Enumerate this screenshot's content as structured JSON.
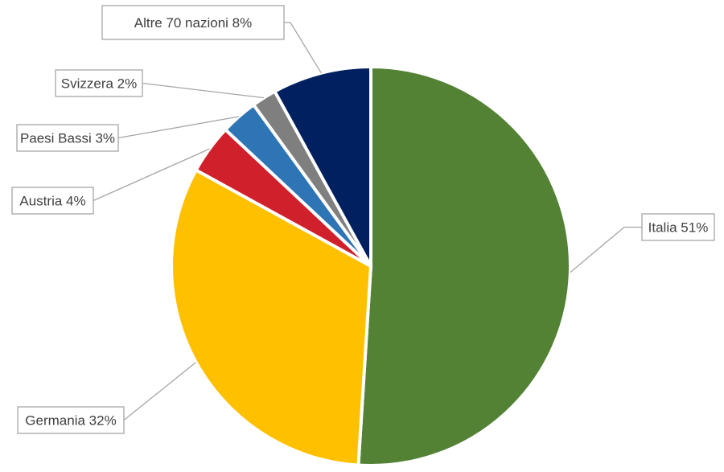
{
  "chart_data": {
    "type": "pie",
    "start_angle_deg": 0,
    "direction": "clockwise",
    "slices": [
      {
        "label": "Italia",
        "value": 51,
        "display": "Italia 51%",
        "color": "#548235"
      },
      {
        "label": "Germania",
        "value": 32,
        "display": "Germania 32%",
        "color": "#FFC000"
      },
      {
        "label": "Austria",
        "value": 4,
        "display": "Austria 4%",
        "color": "#D0202B"
      },
      {
        "label": "Paesi Bassi",
        "value": 3,
        "display": "Paesi Bassi 3%",
        "color": "#2E75B6"
      },
      {
        "label": "Svizzera",
        "value": 2,
        "display": "Svizzera 2%",
        "color": "#7F7F7F"
      },
      {
        "label": "Altre 70 nazioni",
        "value": 8,
        "display": "Altre 70 nazioni 8%",
        "color": "#002060"
      }
    ],
    "legend": "none",
    "data_labels": "outside with leader lines"
  }
}
